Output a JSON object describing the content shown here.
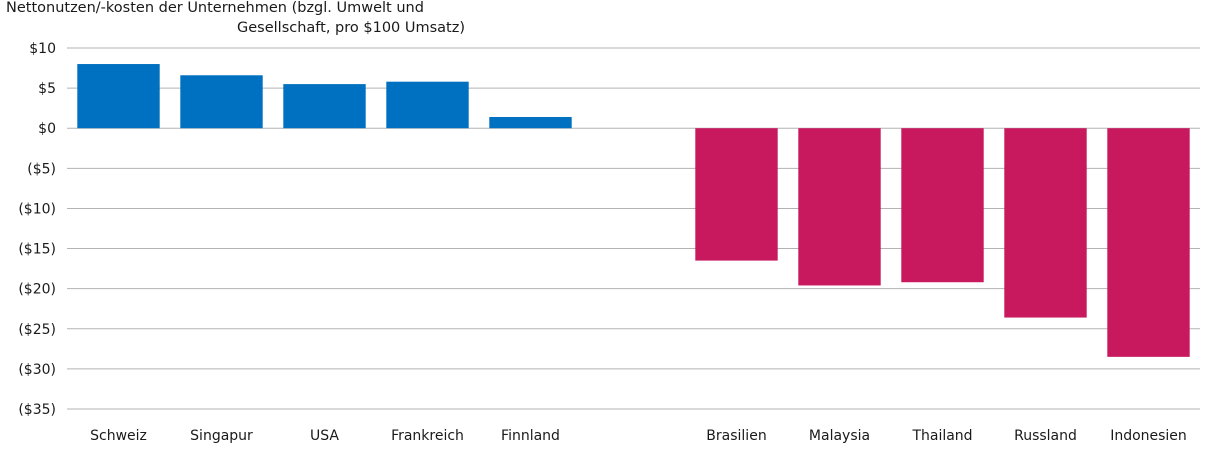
{
  "chart_data": {
    "type": "bar",
    "title_lines": [
      "Nettonutzen/-kosten der Unternehmen (bzgl. Umwelt und",
      "Gesellschaft, pro  $100 Umsatz)"
    ],
    "xlabel": "",
    "ylabel": "",
    "ylim": [
      -35,
      10
    ],
    "ytick_values": [
      10,
      5,
      0,
      -5,
      -10,
      -15,
      -20,
      -25,
      -30,
      -35
    ],
    "ytick_labels": [
      "$10",
      "$5",
      "$0",
      "($5)",
      "($10)",
      "($15)",
      "($20)",
      "($25)",
      "($30)",
      "($35)"
    ],
    "grid": true,
    "categories": [
      "Schweiz",
      "Singapur",
      "USA",
      "Frankreich",
      "Finnland",
      "",
      "Brasilien",
      "Malaysia",
      "Thailand",
      "Russland",
      "Indonesien"
    ],
    "values": [
      8.0,
      6.6,
      5.5,
      5.8,
      1.4,
      null,
      -16.5,
      -19.6,
      -19.2,
      -23.6,
      -28.5
    ],
    "colors": {
      "positive": "#0070C0",
      "negative": "#C8195F",
      "grid": "#b3b3b3"
    }
  }
}
